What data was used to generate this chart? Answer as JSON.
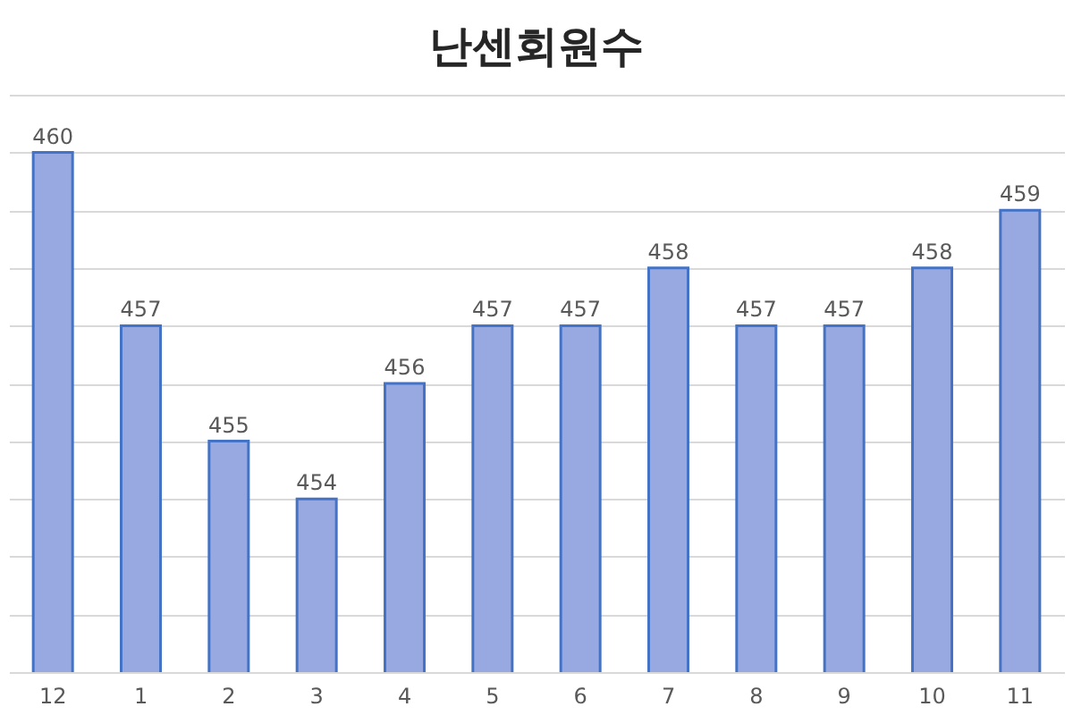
{
  "chart_data": {
    "type": "bar",
    "title": "난센회원수",
    "categories": [
      "12",
      "1",
      "2",
      "3",
      "4",
      "5",
      "6",
      "7",
      "8",
      "9",
      "10",
      "11"
    ],
    "values": [
      460,
      457,
      455,
      454,
      456,
      457,
      457,
      458,
      457,
      457,
      458,
      459
    ],
    "color": "#97a9e0",
    "ylim": [
      451,
      461
    ],
    "yticks": [
      {
        "value": 451,
        "label": null
      },
      {
        "value": 452,
        "label": null
      },
      {
        "value": 453,
        "label": null
      },
      {
        "value": 454,
        "label": null
      },
      {
        "value": 455,
        "label": null
      },
      {
        "value": 456,
        "label": null
      },
      {
        "value": 457,
        "label": null
      },
      {
        "value": 458,
        "label": null
      },
      {
        "value": 459,
        "label": null
      },
      {
        "value": 460,
        "label": null
      },
      {
        "value": 461,
        "label": null
      }
    ],
    "grid": "y",
    "tick_labels": "x",
    "data_labels": true
  }
}
